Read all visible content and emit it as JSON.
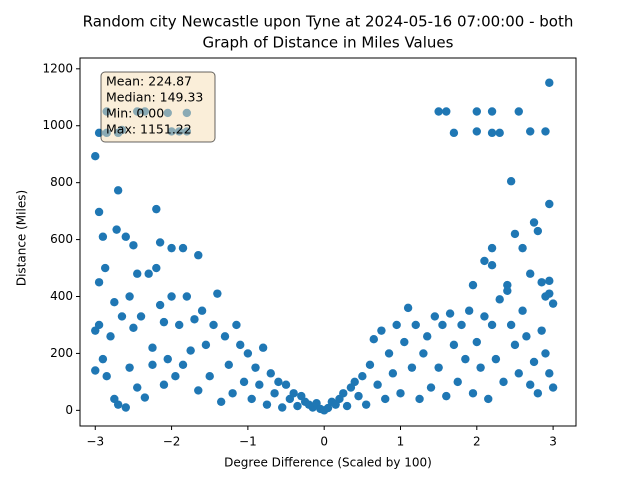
{
  "chart_data": {
    "type": "scatter",
    "title": [
      "Random city Newcastle upon Tyne at 2024-05-16 07:00:00  - both",
      "Graph of Distance in Miles Values"
    ],
    "x_label": "Degree Difference (Scaled by 100)",
    "y_label": "Distance (Miles)",
    "annotation": [
      "Mean: 224.87",
      "Median: 149.33",
      "Min: 0.00",
      "Max: 1151.22"
    ],
    "color": "#1f77b4",
    "xlim": [
      -3.2,
      3.3
    ],
    "ylim": [
      -55,
      1238
    ],
    "xticks": [
      {
        "value": -3,
        "label": "−3"
      },
      {
        "value": -2,
        "label": "−2"
      },
      {
        "value": -1,
        "label": "−1"
      },
      0,
      1,
      2,
      3
    ],
    "yticks": [
      0,
      200,
      400,
      600,
      800,
      1000,
      1200
    ],
    "x": [
      -3,
      -2.95,
      -2.9,
      -2.87,
      -2.7,
      -2.72,
      -2.6,
      -2.5,
      -2.2,
      -2.15,
      -2,
      -1.85,
      -1.65,
      -2.45,
      -2.35,
      -2.05,
      -1.8,
      -2.85,
      -2.95,
      -2.85,
      -2.7,
      -2.65,
      -2,
      -1.9,
      -1.8,
      1.5,
      1.6,
      1.7,
      2,
      2,
      2.2,
      2.2,
      2.3,
      2.55,
      2.7,
      2.9,
      2.95,
      2.45,
      2.95,
      2.75,
      2.8,
      2.5,
      2.6,
      2.2,
      2.1,
      2.2,
      1.95,
      2.4,
      2.7,
      2.95,
      2.85,
      2.95,
      2.9,
      3,
      -3,
      -3,
      -2.95,
      -2.95,
      -2.9,
      -2.85,
      -2.8,
      -2.75,
      -2.75,
      -2.7,
      -2.65,
      -2.6,
      -2.55,
      -2.55,
      -2.5,
      -2.45,
      -2.45,
      -2.4,
      -2.35,
      -2.3,
      -2.25,
      -2.25,
      -2.2,
      -2.15,
      -2.1,
      -2.1,
      -2.05,
      -2,
      -1.95,
      -1.9,
      -1.85,
      -1.8,
      -1.75,
      -1.7,
      -1.65,
      -1.6,
      -1.55,
      -1.5,
      -1.45,
      -1.4,
      -1.35,
      -1.3,
      -1.25,
      -1.2,
      -1.15,
      -1.1,
      -1.05,
      -1,
      -0.95,
      -0.9,
      -0.85,
      -0.8,
      -0.75,
      -0.7,
      -0.65,
      -0.6,
      -0.55,
      -0.5,
      -0.45,
      -0.4,
      -0.35,
      -0.3,
      -0.25,
      -0.2,
      -0.15,
      -0.1,
      -0.05,
      0,
      0.05,
      0.1,
      0.15,
      0.2,
      0.25,
      0.3,
      0.35,
      0.4,
      0.45,
      0.5,
      0.55,
      0.6,
      0.65,
      0.7,
      0.75,
      0.8,
      0.85,
      0.9,
      0.95,
      1,
      1.05,
      1.1,
      1.15,
      1.2,
      1.25,
      1.3,
      1.35,
      1.4,
      1.45,
      1.5,
      1.55,
      1.6,
      1.65,
      1.7,
      1.75,
      1.8,
      1.85,
      1.9,
      1.95,
      2,
      2.05,
      2.1,
      2.15,
      2.2,
      2.25,
      2.3,
      2.35,
      2.4,
      2.45,
      2.5,
      2.55,
      2.6,
      2.65,
      2.7,
      2.75,
      2.8,
      2.85,
      2.9,
      2.95,
      3
    ],
    "values": [
      893,
      697,
      610,
      500,
      773,
      635,
      610,
      580,
      707,
      590,
      570,
      570,
      545,
      1050,
      1050,
      1045,
      1045,
      1050,
      975,
      975,
      975,
      985,
      980,
      980,
      980,
      1050,
      1050,
      975,
      1050,
      980,
      1050,
      975,
      975,
      1050,
      980,
      980,
      1151,
      805,
      725,
      660,
      630,
      620,
      570,
      570,
      525,
      510,
      440,
      440,
      480,
      455,
      450,
      410,
      400,
      375,
      140,
      280,
      300,
      450,
      180,
      120,
      260,
      380,
      40,
      20,
      330,
      10,
      150,
      400,
      290,
      80,
      480,
      330,
      45,
      480,
      220,
      160,
      500,
      370,
      310,
      90,
      180,
      400,
      120,
      300,
      160,
      400,
      210,
      320,
      70,
      350,
      230,
      120,
      300,
      410,
      30,
      260,
      160,
      60,
      300,
      230,
      100,
      200,
      40,
      150,
      90,
      220,
      20,
      130,
      60,
      100,
      10,
      90,
      40,
      60,
      15,
      50,
      30,
      20,
      10,
      25,
      5,
      0,
      8,
      30,
      20,
      40,
      60,
      15,
      80,
      100,
      50,
      120,
      20,
      160,
      250,
      90,
      280,
      40,
      200,
      130,
      300,
      60,
      240,
      360,
      150,
      300,
      40,
      200,
      260,
      80,
      330,
      150,
      300,
      50,
      340,
      230,
      100,
      300,
      180,
      350,
      60,
      240,
      150,
      330,
      40,
      300,
      180,
      390,
      100,
      420,
      300,
      230,
      130,
      350,
      260,
      90,
      170,
      60,
      280,
      200,
      130,
      80
    ]
  }
}
